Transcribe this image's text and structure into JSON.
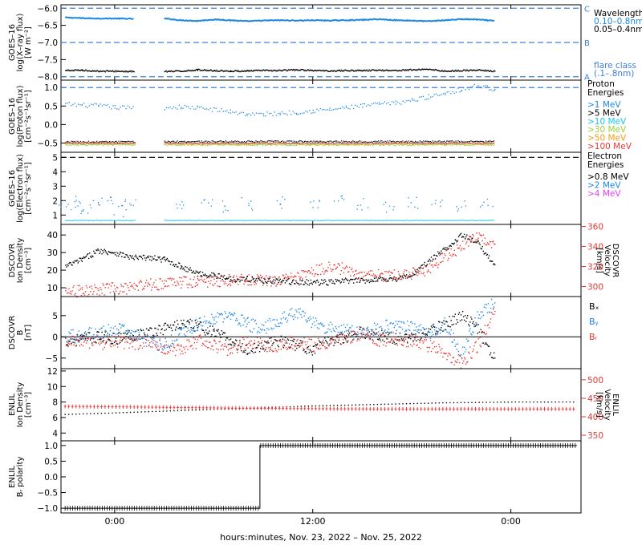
{
  "figure": {
    "xlabel": "hours:minutes, Nov. 23, 2022 – Nov. 25, 2022",
    "x_ticks": [
      "0:00",
      "12:00",
      "0:00"
    ],
    "x_range_hours": [
      -3.25,
      28.25
    ]
  },
  "colors": {
    "black": "#000000",
    "blue": "#1e88e5",
    "dashed_blue": "#3d7fd8",
    "cyan": "#18c8e6",
    "green": "#9ad13a",
    "orange": "#f39c12",
    "red": "#e53935",
    "magenta": "#e040fb"
  },
  "chart_data": [
    {
      "id": "xray",
      "type": "line",
      "ylabel": [
        "GOES–16",
        "log(X–ray flux)",
        "[W m⁻²]"
      ],
      "ylim": [
        -8.1,
        -5.9
      ],
      "yticks": [
        -8.0,
        -7.5,
        -7.0,
        -6.5,
        -6.0
      ],
      "ytick_labels": [
        "−8.0",
        "−7.5",
        "−7.0",
        "−6.5",
        "−6.0"
      ],
      "flare_levels": [
        {
          "value": -6.0,
          "label": "C"
        },
        {
          "value": -7.0,
          "label": "B"
        },
        {
          "value": -8.0,
          "label": "A"
        }
      ],
      "legend": {
        "title": "Wavelength",
        "entries": [
          "0.10–0.8nm",
          "0.05–0.4nm"
        ],
        "footer": [
          "flare class",
          "(.1–.8nm)"
        ]
      },
      "series": [
        {
          "name": "0.10–0.8nm",
          "color": "blue",
          "style": "line",
          "x": [
            -3.0,
            -2.0,
            -1.0,
            0.0,
            1.2,
            2.0,
            3.0,
            4.0,
            5.0,
            6.0,
            7.0,
            8.0,
            9.0,
            10.0,
            11.0,
            12.0,
            13.0,
            14.0,
            15.0,
            16.0,
            17.0,
            18.0,
            19.0,
            20.0,
            21.0,
            22.0,
            23.0
          ],
          "y": [
            -6.27,
            -6.29,
            -6.3,
            -6.3,
            -6.31,
            null,
            -6.3,
            -6.35,
            -6.37,
            -6.33,
            -6.35,
            -6.38,
            -6.36,
            -6.35,
            -6.36,
            -6.35,
            -6.36,
            -6.35,
            -6.34,
            -6.32,
            -6.35,
            -6.36,
            -6.38,
            -6.35,
            -6.32,
            -6.33,
            -6.37
          ]
        },
        {
          "name": "0.05–0.4nm",
          "color": "black",
          "style": "dots",
          "x": [
            -3.0,
            -2.0,
            -1.0,
            0.0,
            1.2,
            2.0,
            3.0,
            4.0,
            5.0,
            6.0,
            7.0,
            8.0,
            9.0,
            10.0,
            11.0,
            12.0,
            13.0,
            14.0,
            15.0,
            16.0,
            17.0,
            18.0,
            19.0,
            20.0,
            21.0,
            22.0,
            23.0
          ],
          "y": [
            -7.82,
            -7.81,
            -7.84,
            -7.84,
            -7.85,
            null,
            -7.85,
            -7.84,
            -7.8,
            -7.82,
            -7.84,
            -7.83,
            -7.82,
            -7.82,
            -7.8,
            -7.82,
            -7.83,
            -7.82,
            -7.82,
            -7.81,
            -7.82,
            -7.8,
            -7.78,
            -7.84,
            -7.82,
            -7.81,
            -7.84
          ]
        }
      ]
    },
    {
      "id": "proton",
      "type": "scatter",
      "ylabel": [
        "GOES–16",
        "log(Proton flux)",
        "[cm⁻²s⁻¹sr⁻¹]"
      ],
      "ylim": [
        -0.75,
        1.2
      ],
      "yticks": [
        -0.5,
        0.0,
        0.5,
        1.0
      ],
      "ytick_labels": [
        "−0.5",
        "0.0",
        "0.5",
        "1.0"
      ],
      "reference_line": 1.0,
      "legend": {
        "title": [
          "Proton",
          "Energies"
        ],
        "entries": [
          ">1 MeV",
          ">5 MeV",
          ">10 MeV",
          ">30 MeV",
          ">50 MeV",
          ">100 MeV"
        ]
      },
      "series": [
        {
          "name": ">1 MeV",
          "color": "blue",
          "x": [
            -3.0,
            -2.0,
            -1.0,
            0.0,
            1.2,
            2.0,
            3.0,
            4.0,
            5.0,
            6.0,
            7.0,
            8.0,
            9.0,
            10.0,
            11.0,
            12.0,
            13.0,
            14.0,
            15.0,
            16.0,
            17.0,
            18.0,
            19.0,
            20.0,
            21.0,
            22.0,
            23.0
          ],
          "y": [
            0.55,
            0.52,
            0.5,
            0.46,
            0.45,
            null,
            0.46,
            0.47,
            0.45,
            0.4,
            0.35,
            0.28,
            0.27,
            0.3,
            0.33,
            0.37,
            0.4,
            0.45,
            0.5,
            0.55,
            0.58,
            0.65,
            0.75,
            0.85,
            0.95,
            1.05,
            0.95
          ]
        },
        {
          "name": ">5 MeV",
          "color": "black",
          "x": [
            -3.0,
            1.2,
            3.0,
            23.0
          ],
          "y": [
            -0.47,
            -0.47,
            -0.46,
            -0.46
          ]
        },
        {
          "name": ">10 MeV",
          "color": "cyan",
          "x": [
            -3.0,
            1.2,
            3.0,
            23.0
          ],
          "y": [
            -0.52,
            -0.51,
            -0.51,
            -0.52
          ]
        },
        {
          "name": ">30 MeV",
          "color": "green",
          "x": [
            -3.0,
            1.2,
            3.0,
            23.0
          ],
          "y": [
            -0.55,
            -0.56,
            -0.55,
            -0.55
          ]
        },
        {
          "name": ">50 MeV",
          "color": "orange",
          "x": [
            -3.0,
            1.2,
            3.0,
            23.0
          ],
          "y": [
            -0.52,
            -0.53,
            -0.53,
            -0.53
          ]
        },
        {
          "name": ">100 MeV",
          "color": "red",
          "x": [
            -3.0,
            1.2,
            3.0,
            23.0
          ],
          "y": [
            -0.5,
            -0.49,
            -0.5,
            -0.5
          ]
        }
      ]
    },
    {
      "id": "electron",
      "type": "scatter",
      "ylabel": [
        "GOES–16",
        "log(Electron flux)",
        "[cm⁻²s⁻¹sr⁻¹]"
      ],
      "ylim": [
        0.35,
        5.35
      ],
      "yticks": [
        1,
        2,
        3,
        4,
        5
      ],
      "ytick_labels": [
        "1",
        "2",
        "3",
        "4",
        "5"
      ],
      "reference_line": 5.0,
      "legend": {
        "title": [
          "Electron",
          "Energies"
        ],
        "entries": [
          ">0.8 MeV",
          ">2 MeV",
          ">4 MeV"
        ]
      },
      "series": [
        {
          "name": ">2 MeV",
          "color": "blue",
          "x": [
            -3.0,
            -2.5,
            -2.0,
            -1.2,
            -0.5,
            0.3,
            1.0,
            4.0,
            5.5,
            6.5,
            8.0,
            10.0,
            12.0,
            13.5,
            15.0,
            16.5,
            18.0,
            19.5,
            21.0,
            22.5
          ],
          "y": [
            1.7,
            2.0,
            1.4,
            1.9,
            2.0,
            1.3,
            1.8,
            1.8,
            2.0,
            1.6,
            1.8,
            1.9,
            1.7,
            2.0,
            1.8,
            1.6,
            1.9,
            2.0,
            1.7,
            1.9
          ]
        },
        {
          "name": ">0.8 MeV",
          "color": "cyan",
          "x": [
            -3.0,
            1.2,
            3.0,
            23.0
          ],
          "y": [
            0.62,
            0.62,
            0.62,
            0.62
          ]
        }
      ]
    },
    {
      "id": "dscovr_plasma",
      "type": "line",
      "ylabel": [
        "DSCOVR",
        "Ion Density",
        "[cm⁻³]"
      ],
      "ylim": [
        5,
        46
      ],
      "yticks": [
        10,
        20,
        30,
        40
      ],
      "ytick_labels": [
        "10",
        "20",
        "30",
        "40"
      ],
      "y2label": [
        "DSCOVR",
        "Velocity",
        "[km/s]"
      ],
      "y2lim": [
        290,
        362
      ],
      "y2ticks": [
        300,
        320,
        340,
        360
      ],
      "y2tick_labels": [
        "300",
        "320",
        "340",
        "360"
      ],
      "series": [
        {
          "name": "Density",
          "axis": "left",
          "color": "black",
          "x": [
            -3.0,
            -2.0,
            -1.0,
            0.0,
            1.0,
            2.0,
            3.0,
            4.0,
            5.0,
            6.0,
            7.0,
            8.0,
            9.0,
            10.0,
            11.0,
            12.0,
            13.0,
            14.0,
            15.0,
            16.0,
            17.0,
            18.0,
            19.0,
            20.0,
            21.0,
            22.0,
            23.0
          ],
          "y": [
            22,
            26,
            31,
            30,
            27,
            27,
            26,
            22,
            18,
            17,
            15,
            15,
            14,
            14,
            13,
            13,
            13,
            14,
            14,
            15,
            15,
            17,
            25,
            32,
            40,
            35,
            23
          ]
        },
        {
          "name": "Velocity",
          "axis": "right",
          "color": "red",
          "x": [
            -3.0,
            -2.0,
            -1.0,
            0.0,
            1.0,
            2.0,
            3.0,
            4.0,
            5.0,
            6.0,
            7.0,
            8.0,
            9.0,
            10.0,
            11.0,
            12.0,
            13.0,
            14.0,
            15.0,
            16.0,
            17.0,
            18.0,
            19.0,
            20.0,
            21.0,
            22.0,
            23.0
          ],
          "y": [
            296,
            295,
            297,
            298,
            298,
            302,
            303,
            304,
            305,
            305,
            306,
            307,
            306,
            306,
            309,
            315,
            320,
            317,
            310,
            311,
            311,
            313,
            318,
            330,
            340,
            350,
            342
          ]
        }
      ]
    },
    {
      "id": "dscovr_b",
      "type": "line",
      "ylabel": [
        "DSCOVR",
        "B",
        "[nT]"
      ],
      "ylim": [
        -7.5,
        9.5
      ],
      "yticks": [
        -5,
        0,
        5
      ],
      "ytick_labels": [
        "−5",
        "0",
        "5"
      ],
      "zero_line": true,
      "legend": {
        "entries": [
          "Bₓ",
          "Bᵧ",
          "Bᵣ"
        ]
      },
      "series": [
        {
          "name": "Bx",
          "color": "black",
          "x": [
            -3.0,
            -2.0,
            -1.0,
            0.0,
            1.0,
            2.0,
            3.0,
            4.0,
            5.0,
            6.0,
            7.0,
            8.0,
            9.0,
            10.0,
            11.0,
            12.0,
            13.0,
            14.0,
            15.0,
            16.0,
            17.0,
            18.0,
            19.0,
            20.0,
            21.0,
            22.0,
            23.0
          ],
          "y": [
            -1.0,
            -0.5,
            0.0,
            -0.5,
            0.5,
            1.0,
            2.0,
            3.0,
            2.5,
            1.0,
            -1.0,
            -3.0,
            -2.0,
            -1.0,
            -2.0,
            -3.0,
            -1.0,
            0.0,
            1.0,
            0.5,
            -0.5,
            0.0,
            1.0,
            3.0,
            5.0,
            2.0,
            -5.0
          ]
        },
        {
          "name": "By",
          "color": "blue",
          "x": [
            -3.0,
            -2.0,
            -1.0,
            0.0,
            1.0,
            2.0,
            3.0,
            4.0,
            5.0,
            6.0,
            7.0,
            8.0,
            9.0,
            10.0,
            11.0,
            12.0,
            13.0,
            14.0,
            15.0,
            16.0,
            17.0,
            18.0,
            19.0,
            20.0,
            21.0,
            22.0,
            23.0
          ],
          "y": [
            0.0,
            1.0,
            0.5,
            2.0,
            1.0,
            -1.0,
            -2.0,
            1.0,
            3.0,
            4.0,
            5.0,
            3.0,
            2.0,
            4.0,
            6.0,
            3.0,
            2.0,
            1.5,
            1.0,
            2.0,
            3.0,
            2.0,
            1.0,
            3.0,
            -4.0,
            5.0,
            8.0
          ]
        },
        {
          "name": "Bz",
          "color": "red",
          "x": [
            -3.0,
            -2.0,
            -1.0,
            0.0,
            1.0,
            2.0,
            3.0,
            4.0,
            5.0,
            6.0,
            7.0,
            8.0,
            9.0,
            10.0,
            11.0,
            12.0,
            13.0,
            14.0,
            15.0,
            16.0,
            17.0,
            18.0,
            19.0,
            20.0,
            21.0,
            22.0,
            23.0
          ],
          "y": [
            -1.5,
            -1.0,
            -1.5,
            -1.0,
            -2.0,
            -1.0,
            -2.5,
            -3.0,
            -1.0,
            -2.0,
            -3.0,
            -1.0,
            -2.0,
            -2.0,
            -1.0,
            -2.0,
            -1.0,
            -0.5,
            1.0,
            -1.0,
            -0.5,
            -1.0,
            -2.0,
            -4.0,
            -6.0,
            -2.0,
            6.0
          ]
        }
      ]
    },
    {
      "id": "enlil_plasma",
      "type": "line",
      "ylabel": [
        "ENLIL",
        "Ion Density",
        "[cm⁻³]"
      ],
      "ylim": [
        3.0,
        12.3
      ],
      "yticks": [
        4,
        6,
        8,
        10,
        12
      ],
      "ytick_labels": [
        "4",
        "6",
        "8",
        "10",
        "12"
      ],
      "y2label": [
        "ENLIL",
        "Velocity",
        "[km/s]"
      ],
      "y2lim": [
        335,
        530
      ],
      "y2ticks": [
        350,
        400,
        450,
        500
      ],
      "y2tick_labels": [
        "350",
        "400",
        "450",
        "500"
      ],
      "series": [
        {
          "name": "Density",
          "axis": "left",
          "color": "black",
          "x": [
            -3.0,
            0.0,
            4.0,
            8.0,
            12.0,
            16.0,
            20.0,
            24.0,
            28.0
          ],
          "y": [
            6.4,
            6.6,
            6.9,
            7.2,
            7.5,
            7.7,
            7.9,
            8.0,
            8.0
          ]
        },
        {
          "name": "Velocity",
          "axis": "right",
          "color": "red",
          "x": [
            -3.0,
            0.0,
            4.0,
            8.0,
            12.0,
            16.0,
            20.0,
            24.0,
            28.0
          ],
          "y": [
            428,
            427,
            425,
            423,
            422,
            421,
            421,
            421,
            421
          ]
        }
      ]
    },
    {
      "id": "enlil_polarity",
      "type": "line",
      "ylabel": [
        "ENLIL",
        "Bᵣ polarity"
      ],
      "ylim": [
        -1.15,
        1.15
      ],
      "yticks": [
        -1.0,
        -0.5,
        0.0,
        0.5,
        1.0
      ],
      "ytick_labels": [
        "−1.0",
        "−0.5",
        "0.0",
        "0.5",
        "1.0"
      ],
      "series": [
        {
          "name": "Polarity",
          "color": "black",
          "x": [
            -3.0,
            8.8,
            8.8,
            28.0
          ],
          "y": [
            -1.0,
            -1.0,
            1.0,
            1.0
          ]
        }
      ]
    }
  ]
}
